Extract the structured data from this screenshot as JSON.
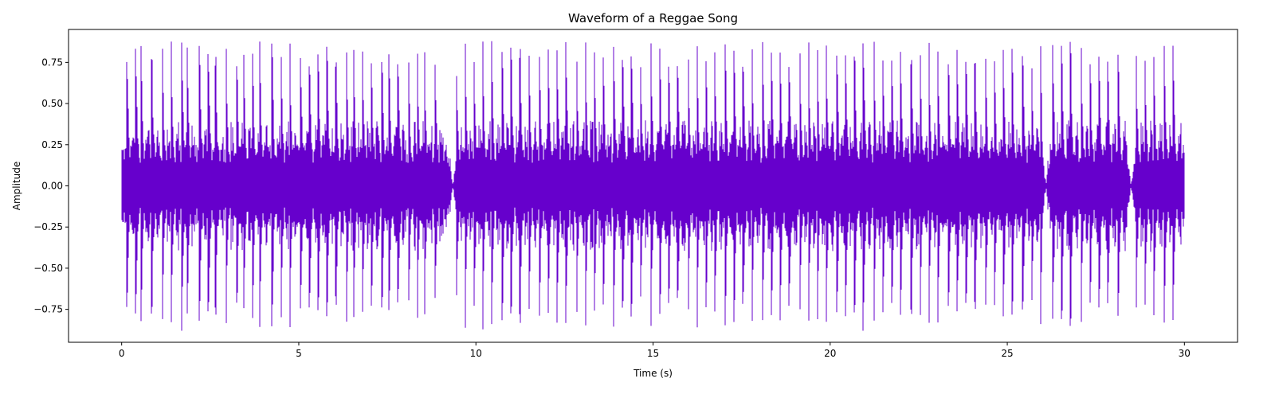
{
  "chart_data": {
    "type": "line",
    "title": "Waveform of a Reggae Song",
    "xlabel": "Time (s)",
    "ylabel": "Amplitude",
    "xlim": [
      -1.5,
      31.5
    ],
    "ylim": [
      -0.95,
      0.95
    ],
    "xticks": [
      0,
      5,
      10,
      15,
      20,
      25,
      30
    ],
    "xtick_labels": [
      "0",
      "5",
      "10",
      "15",
      "20",
      "25",
      "30"
    ],
    "yticks": [
      -0.75,
      -0.5,
      -0.25,
      0.0,
      0.25,
      0.5,
      0.75
    ],
    "ytick_labels": [
      "−0.75",
      "−0.50",
      "−0.25",
      "0.00",
      "0.25",
      "0.50",
      "0.75"
    ],
    "grid": false,
    "series": [
      {
        "color": "#6600cc",
        "x_range": [
          0,
          30
        ],
        "peak_amplitude": 0.88,
        "baseline_amplitude": 0.2,
        "beat_times": [
          0.15,
          0.4,
          0.55,
          0.85,
          1.15,
          1.4,
          1.7,
          1.85,
          2.2,
          2.45,
          2.65,
          2.95,
          3.25,
          3.45,
          3.7,
          3.9,
          4.25,
          4.5,
          4.75,
          5.05,
          5.3,
          5.55,
          5.8,
          6.05,
          6.35,
          6.55,
          6.8,
          7.05,
          7.35,
          7.55,
          7.8,
          8.1,
          8.35,
          8.55,
          8.85,
          9.45,
          9.7,
          9.95,
          10.2,
          10.45,
          10.75,
          11.0,
          11.25,
          11.5,
          11.8,
          12.05,
          12.3,
          12.55,
          12.85,
          13.1,
          13.35,
          13.6,
          13.9,
          14.15,
          14.4,
          14.65,
          14.95,
          15.2,
          15.45,
          15.7,
          16.0,
          16.25,
          16.5,
          16.75,
          17.05,
          17.3,
          17.55,
          17.8,
          18.1,
          18.35,
          18.6,
          18.85,
          19.15,
          19.4,
          19.65,
          19.9,
          20.2,
          20.45,
          20.7,
          20.95,
          21.25,
          21.5,
          21.75,
          22.0,
          22.3,
          22.55,
          22.8,
          23.05,
          23.35,
          23.6,
          23.85,
          24.1,
          24.4,
          24.65,
          24.9,
          25.15,
          25.45,
          25.7,
          25.95,
          26.3,
          26.55,
          26.8,
          27.1,
          27.35,
          27.6,
          27.85,
          28.15,
          28.65,
          28.9,
          29.15,
          29.45,
          29.7
        ],
        "quiet_points": [
          9.35,
          26.1,
          28.5
        ]
      }
    ]
  }
}
